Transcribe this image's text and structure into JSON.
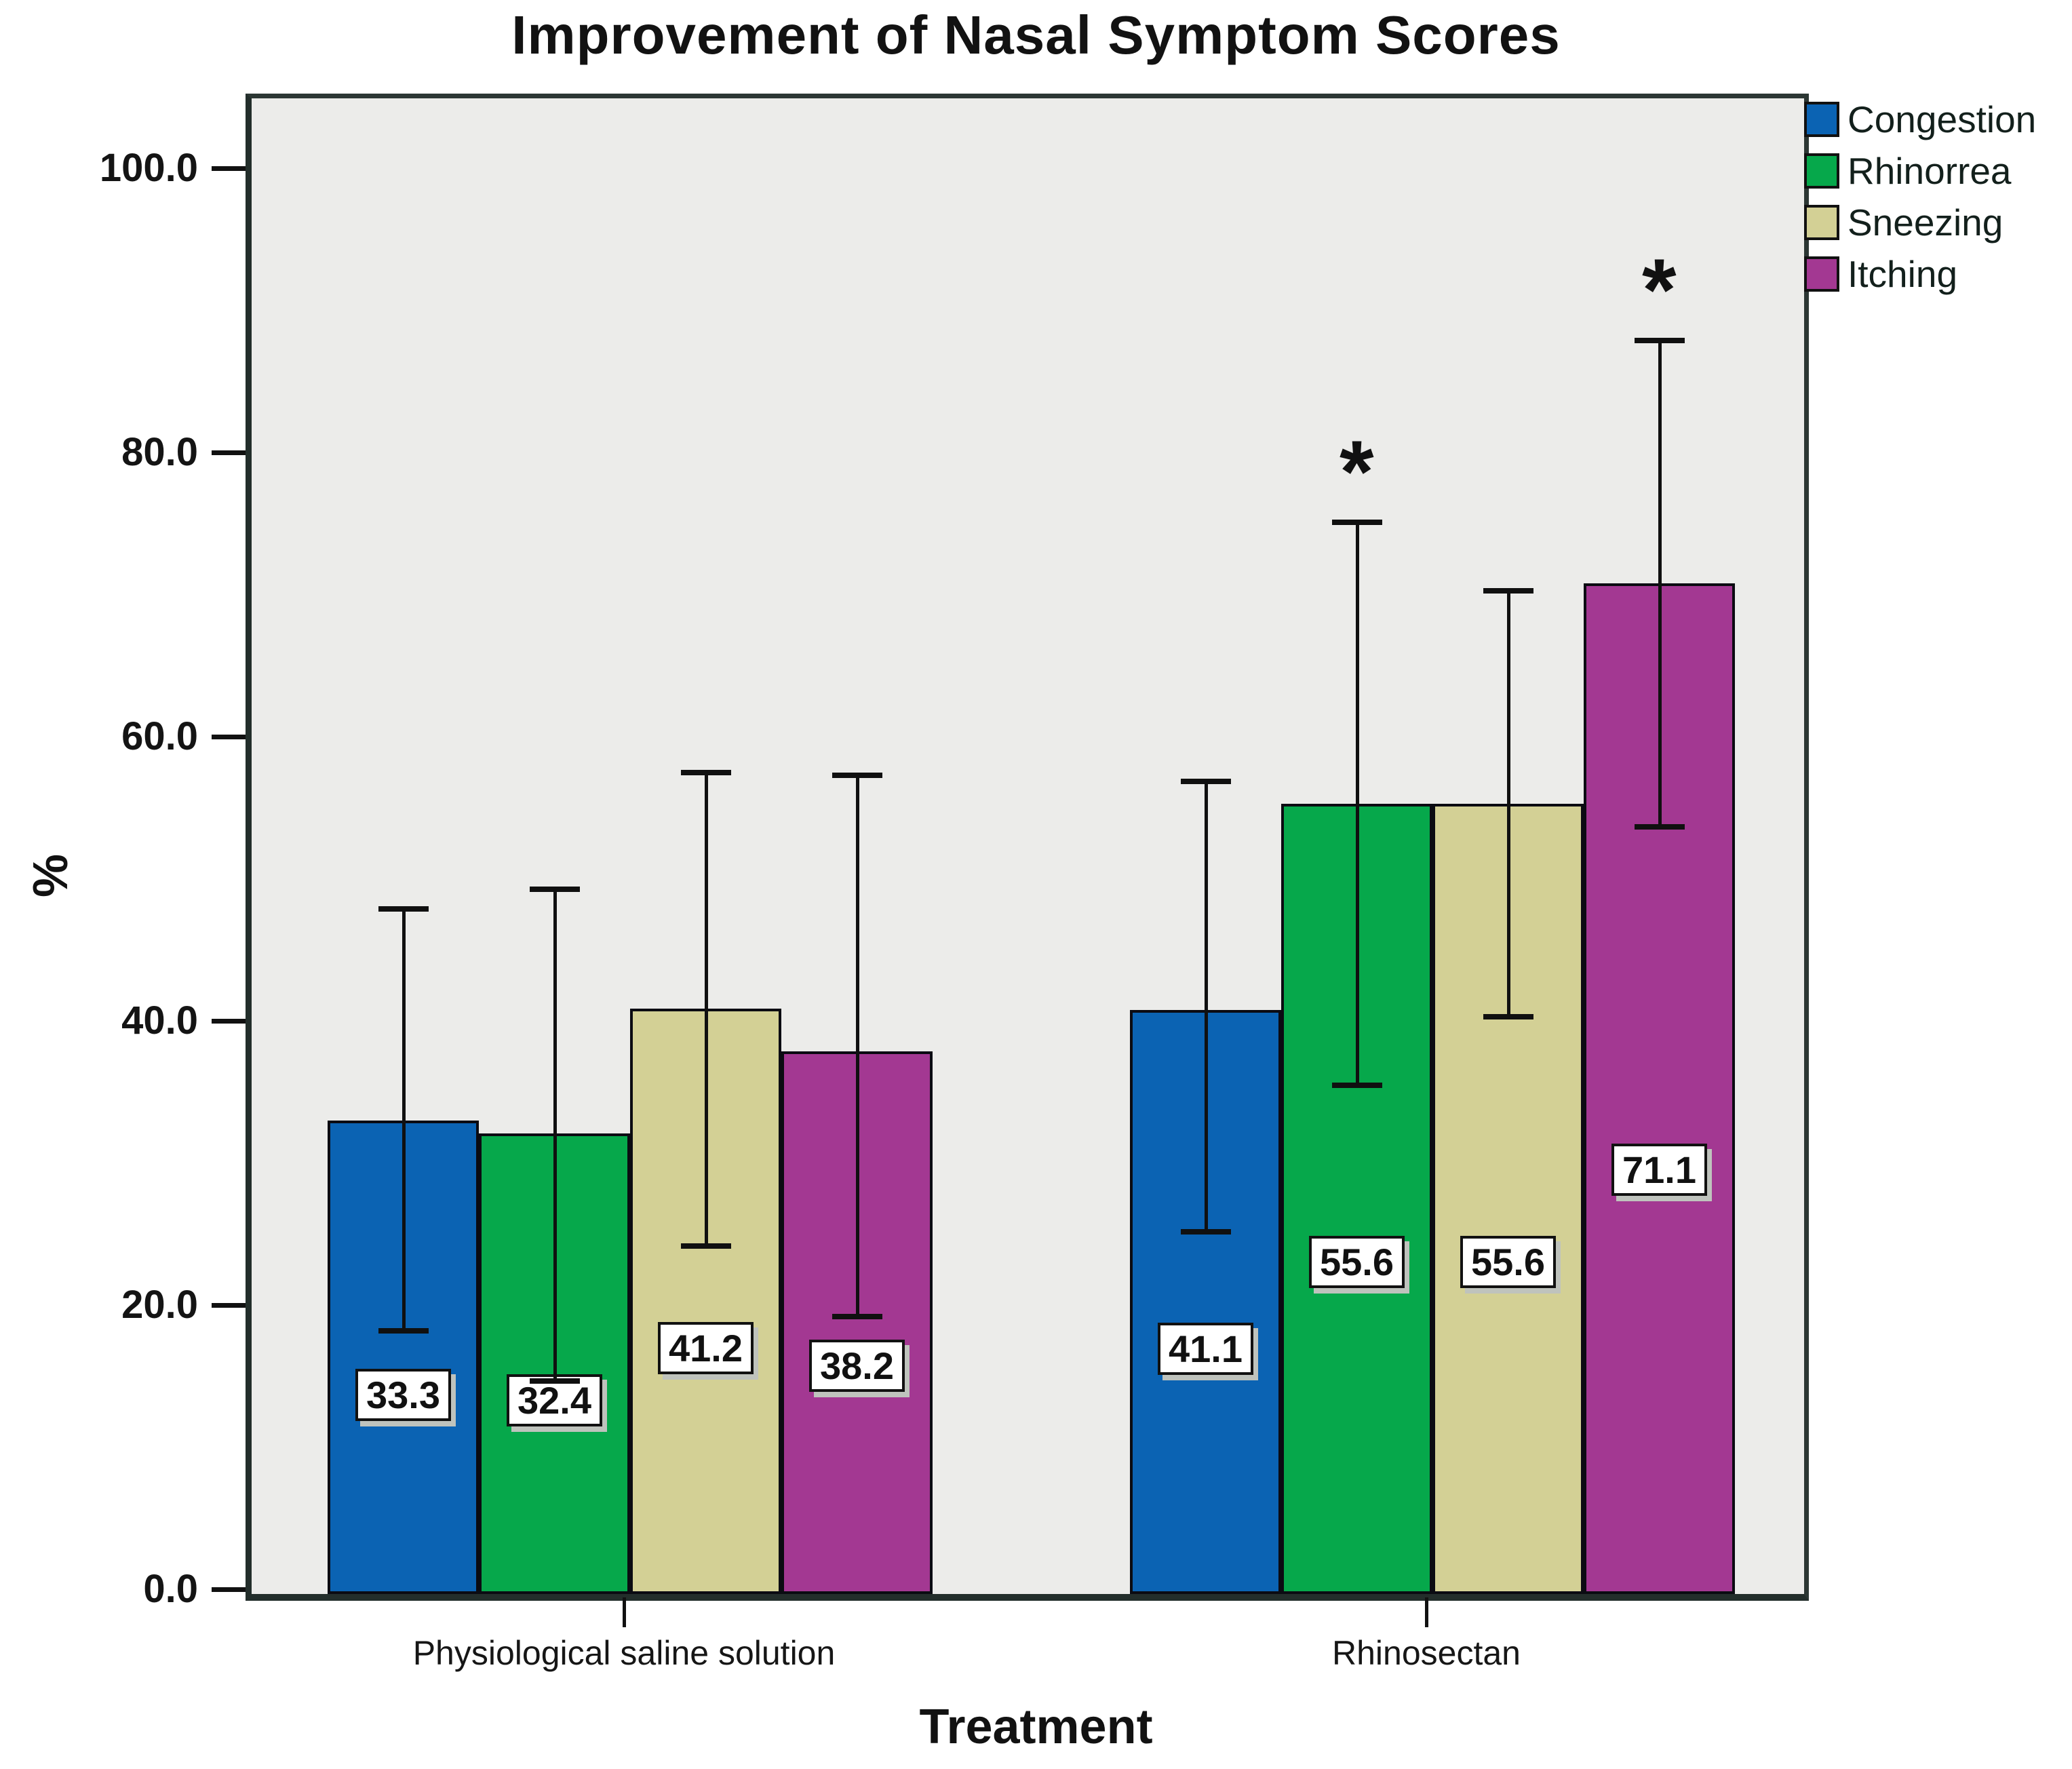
{
  "title": "Improvement of Nasal Symptom Scores",
  "y_axis": {
    "label": "%",
    "ticks": [
      {
        "value": 100,
        "label": "100.0"
      },
      {
        "value": 80,
        "label": "80.0"
      },
      {
        "value": 60,
        "label": "60.0"
      },
      {
        "value": 40,
        "label": "40.0"
      },
      {
        "value": 20,
        "label": "20.0"
      },
      {
        "value": 0,
        "label": "0.0"
      }
    ]
  },
  "x_axis": {
    "title": "Treatment",
    "categories": [
      "Physiological saline solution",
      "Rhinosectan"
    ]
  },
  "legend": {
    "position": "top-right",
    "items": [
      {
        "label": "Congestion",
        "color": "#0b63b3"
      },
      {
        "label": "Rhinorrea",
        "color": "#06a84b"
      },
      {
        "label": "Sneezing",
        "color": "#d3d095"
      },
      {
        "label": "Itching",
        "color": "#a33892"
      }
    ]
  },
  "significance_marker": "*",
  "colors": {
    "plot_background": "#ececea",
    "axis": "#232e2b",
    "error_bar": "#101010"
  },
  "chart_data": {
    "type": "bar",
    "title": "Improvement of Nasal Symptom Scores",
    "xlabel": "Treatment",
    "ylabel": "%",
    "ylim": [
      0,
      100
    ],
    "grid": false,
    "legend_position": "top-right",
    "categories": [
      "Physiological saline solution",
      "Rhinosectan"
    ],
    "series": [
      {
        "name": "Congestion",
        "color": "#0b63b3",
        "values": [
          33.3,
          41.1
        ],
        "value_labels": [
          "33.3",
          "41.1"
        ],
        "error_low": [
          18.5,
          25.5
        ],
        "error_high": [
          48.2,
          57.2
        ],
        "significant": [
          false,
          false
        ]
      },
      {
        "name": "Rhinorrea",
        "color": "#06a84b",
        "values": [
          32.4,
          55.6
        ],
        "value_labels": [
          "32.4",
          "55.6"
        ],
        "error_low": [
          15.0,
          35.8
        ],
        "error_high": [
          49.6,
          75.4
        ],
        "significant": [
          false,
          true
        ]
      },
      {
        "name": "Sneezing",
        "color": "#d3d095",
        "values": [
          41.2,
          55.6
        ],
        "value_labels": [
          "41.2",
          "55.6"
        ],
        "error_low": [
          24.5,
          40.6
        ],
        "error_high": [
          57.8,
          70.6
        ],
        "significant": [
          false,
          false
        ]
      },
      {
        "name": "Itching",
        "color": "#a33892",
        "values": [
          38.2,
          71.1
        ],
        "value_labels": [
          "38.2",
          "71.1"
        ],
        "error_low": [
          19.5,
          54.0
        ],
        "error_high": [
          57.6,
          88.2
        ],
        "significant": [
          false,
          true
        ]
      }
    ]
  }
}
